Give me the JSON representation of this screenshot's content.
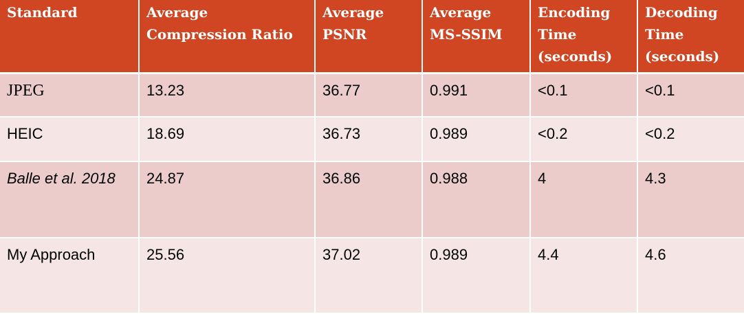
{
  "table": {
    "headers": [
      "Standard",
      "Average Compression Ratio",
      "Average PSNR",
      "Average MS-SSIM",
      "Encoding Time (seconds)",
      "Decoding Time (seconds)"
    ],
    "rows": [
      [
        "JPEG",
        "13.23",
        "36.77",
        "0.991",
        "<0.1",
        "<0.1"
      ],
      [
        "HEIC",
        "18.69",
        "36.73",
        "0.989",
        "<0.2",
        "<0.2"
      ],
      [
        "Balle et al. 2018",
        "24.87",
        "36.86",
        "0.988",
        "4",
        "4.3"
      ],
      [
        "My Approach",
        "25.56",
        "37.02",
        "0.989",
        "4.4",
        "4.6"
      ]
    ]
  },
  "colors": {
    "header_bg": "#d04623",
    "row_odd_bg": "#ecccca",
    "row_even_bg": "#f6e5e5"
  }
}
